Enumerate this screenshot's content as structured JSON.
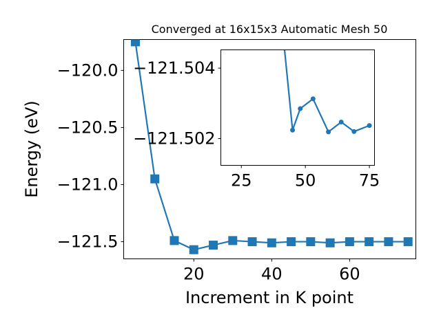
{
  "chart_data": [
    {
      "type": "line",
      "title": "Converged at 16x15x3 Automatic Mesh 50",
      "xlabel": "Increment in K point",
      "ylabel": "Energy (eV)",
      "xlim": [
        2,
        77
      ],
      "ylim": [
        -121.65,
        -119.73
      ],
      "xticks": [
        20,
        40,
        60
      ],
      "yticks": [
        -120.0,
        -120.5,
        -121.0,
        -121.5
      ],
      "xtick_labels": [
        "20",
        "40",
        "60"
      ],
      "ytick_labels": [
        "−120.0",
        "−120.5",
        "−121.0",
        "−121.5"
      ],
      "marker": "square",
      "grid": false,
      "color": "#1f77b4",
      "x": [
        5,
        10,
        15,
        20,
        25,
        30,
        35,
        40,
        45,
        50,
        55,
        60,
        65,
        70,
        75
      ],
      "y": [
        -119.75,
        -120.95,
        -121.49,
        -121.57,
        -121.53,
        -121.49,
        -121.5,
        -121.51,
        -121.5,
        -121.5,
        -121.51,
        -121.5,
        -121.5,
        -121.5,
        -121.5
      ]
    },
    {
      "type": "line",
      "role": "inset",
      "xlim": [
        17,
        77
      ],
      "ylim": [
        -121.50124,
        -121.50452
      ],
      "xticks": [
        25,
        50,
        75
      ],
      "yticks": [
        -121.504,
        -121.502
      ],
      "xtick_labels": [
        "25",
        "50",
        "75"
      ],
      "ytick_labels": [
        "−121.504",
        "−121.502"
      ],
      "marker": "circle",
      "grid": false,
      "color": "#1f77b4",
      "x": [
        40,
        45,
        48,
        53,
        59,
        64,
        69,
        75
      ],
      "y": [
        -121.5059,
        -121.50224,
        -121.50285,
        -121.50313,
        -121.50219,
        -121.50247,
        -121.5022,
        -121.50237
      ]
    }
  ]
}
